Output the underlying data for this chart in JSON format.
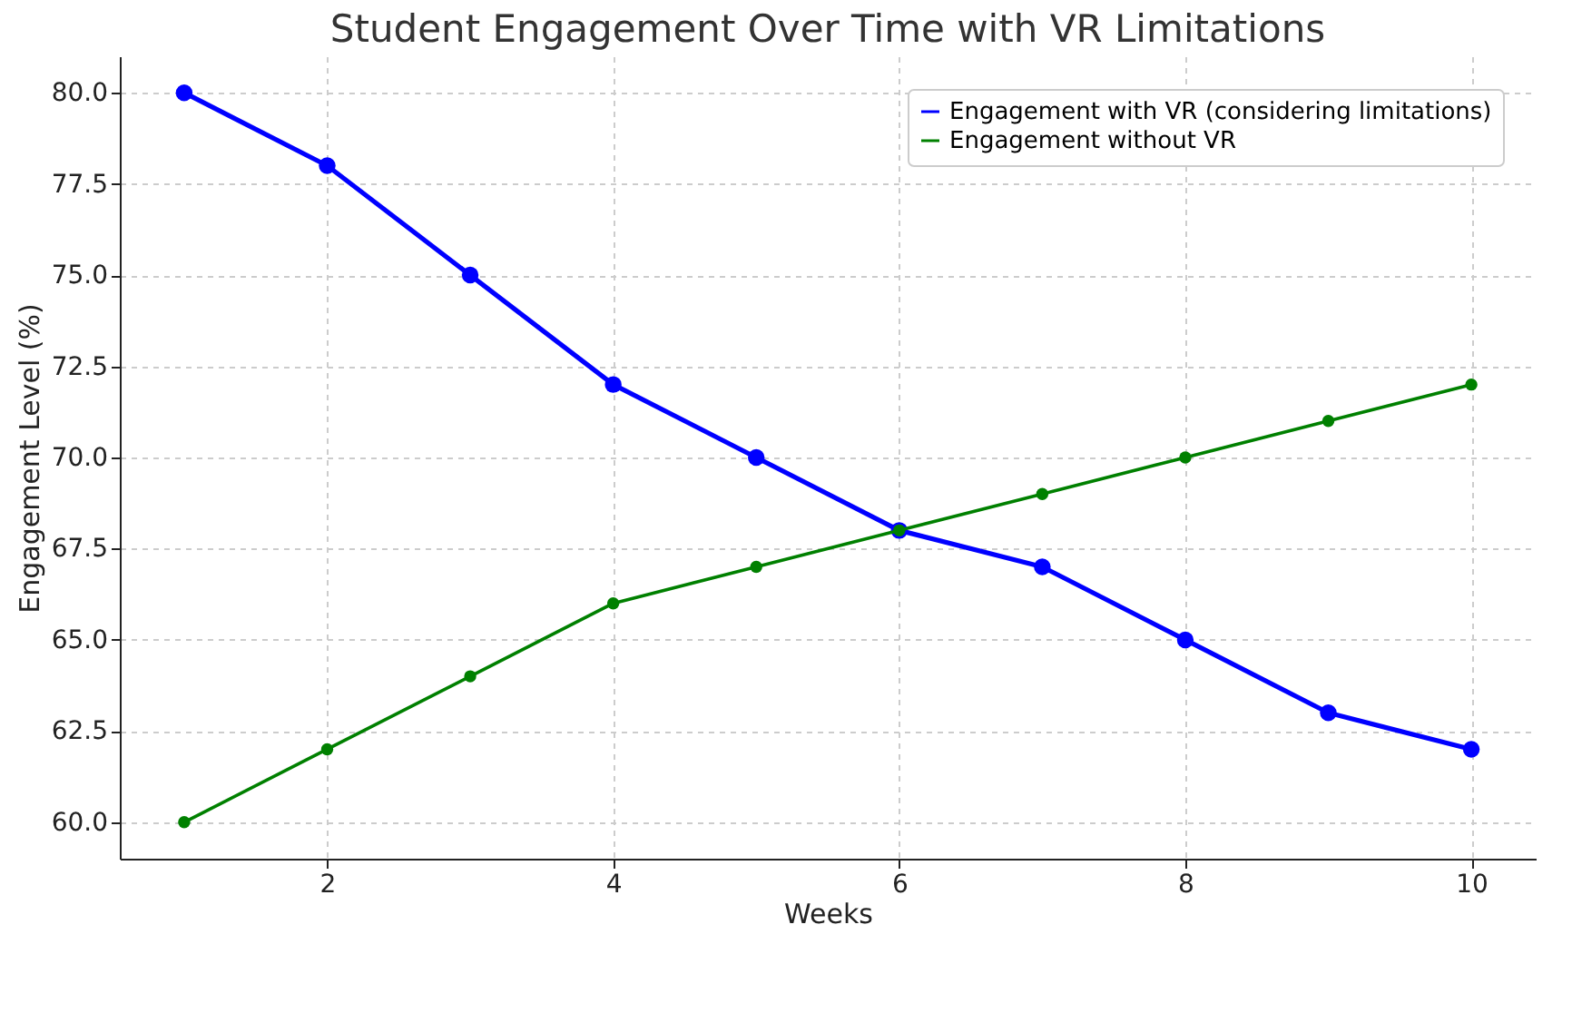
{
  "chart_data": {
    "type": "line",
    "title": "Student Engagement Over Time with VR Limitations",
    "xlabel": "Weeks",
    "ylabel": "Engagement Level (%)",
    "x": [
      1,
      2,
      3,
      4,
      5,
      6,
      7,
      8,
      9,
      10
    ],
    "series": [
      {
        "name": "Engagement with VR (considering limitations)",
        "color": "#0000ff",
        "values": [
          80,
          78,
          75,
          72,
          70,
          68,
          67,
          65,
          63,
          62
        ]
      },
      {
        "name": "Engagement without VR",
        "color": "#008000",
        "values": [
          60,
          62,
          64,
          66,
          67,
          68,
          69,
          70,
          71,
          72
        ]
      }
    ],
    "xlim": [
      0.55,
      10.45
    ],
    "xticks": [
      2,
      4,
      6,
      8,
      10
    ],
    "ylim": [
      59,
      81
    ],
    "yticks": [
      {
        "value": 60,
        "label": "60.0"
      },
      {
        "value": 62.5,
        "label": "62.5"
      },
      {
        "value": 65,
        "label": "65.0"
      },
      {
        "value": 67.5,
        "label": "67.5"
      },
      {
        "value": 70,
        "label": "70.0"
      },
      {
        "value": 72.5,
        "label": "72.5"
      },
      {
        "value": 75,
        "label": "75.0"
      },
      {
        "value": 77.5,
        "label": "77.5"
      },
      {
        "value": 80,
        "label": "80.0"
      }
    ],
    "grid": true,
    "legend": "top right",
    "marker": "circle",
    "line_style": "solid"
  }
}
